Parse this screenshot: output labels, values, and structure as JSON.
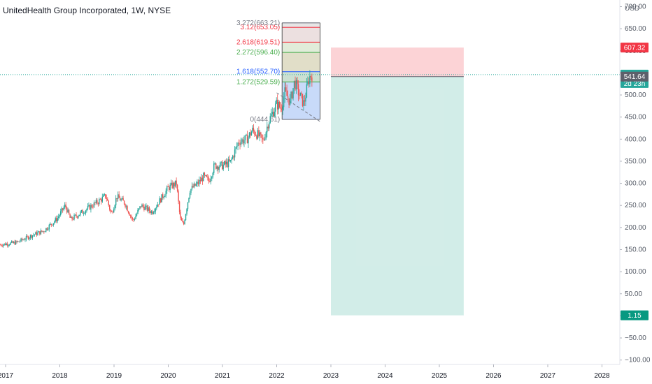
{
  "header": {
    "title": "UnitedHealth Group Incorporated, 1W, NYSE",
    "currency": "USD"
  },
  "chart_data": {
    "type": "candlestick",
    "symbol_title": "UnitedHealth Group Incorporated, 1W, NYSE",
    "currency": "USD",
    "ylim": [
      -110,
      715
    ],
    "y_ticks": [
      "700.00",
      "650.00",
      "600.00",
      "550.00",
      "500.00",
      "450.00",
      "400.00",
      "350.00",
      "300.00",
      "250.00",
      "200.00",
      "150.00",
      "100.00",
      "50.00",
      "0.00",
      "−50.00",
      "−100.00"
    ],
    "y_tick_values": [
      700,
      650,
      600,
      550,
      500,
      450,
      400,
      350,
      300,
      250,
      200,
      150,
      100,
      50,
      0,
      -50,
      -100
    ],
    "x_ticks": [
      "2017",
      "2018",
      "2019",
      "2020",
      "2021",
      "2022",
      "2023",
      "2024",
      "2025",
      "2026",
      "2027",
      "2028"
    ],
    "x_tick_years": [
      2017,
      2018,
      2019,
      2020,
      2021,
      2022,
      2023,
      2024,
      2025,
      2026,
      2027,
      2028
    ],
    "x_range_years": [
      2016.9,
      2028.45
    ],
    "price_path": [
      [
        2016.9,
        161
      ],
      [
        2017.2,
        166
      ],
      [
        2017.5,
        183
      ],
      [
        2017.7,
        192
      ],
      [
        2017.95,
        220
      ],
      [
        2018.1,
        250
      ],
      [
        2018.2,
        218
      ],
      [
        2018.45,
        238
      ],
      [
        2018.7,
        258
      ],
      [
        2018.85,
        272
      ],
      [
        2018.95,
        230
      ],
      [
        2019.05,
        270
      ],
      [
        2019.2,
        255
      ],
      [
        2019.35,
        215
      ],
      [
        2019.5,
        250
      ],
      [
        2019.7,
        235
      ],
      [
        2019.85,
        262
      ],
      [
        2020.0,
        290
      ],
      [
        2020.15,
        300
      ],
      [
        2020.22,
        220
      ],
      [
        2020.28,
        205
      ],
      [
        2020.4,
        285
      ],
      [
        2020.55,
        300
      ],
      [
        2020.65,
        315
      ],
      [
        2020.75,
        305
      ],
      [
        2020.85,
        340
      ],
      [
        2021.0,
        340
      ],
      [
        2021.15,
        348
      ],
      [
        2021.3,
        395
      ],
      [
        2021.45,
        400
      ],
      [
        2021.55,
        420
      ],
      [
        2021.65,
        410
      ],
      [
        2021.75,
        395
      ],
      [
        2021.85,
        440
      ],
      [
        2022.0,
        480
      ],
      [
        2022.08,
        470
      ],
      [
        2022.15,
        505
      ],
      [
        2022.25,
        485
      ],
      [
        2022.33,
        530
      ],
      [
        2022.42,
        500
      ],
      [
        2022.5,
        480
      ],
      [
        2022.6,
        540
      ],
      [
        2022.65,
        546.12
      ]
    ],
    "fib_extension": {
      "levels": [
        {
          "ratio": "0",
          "price": 444.61,
          "label": "0(444.61)",
          "color": "#787b86"
        },
        {
          "ratio": "1.272",
          "price": 529.59,
          "label": "1.272(529.59)",
          "color": "#4caf50"
        },
        {
          "ratio": "1.618",
          "price": 552.7,
          "label": "1.618(552.70)",
          "color": "#2962ff"
        },
        {
          "ratio": "2.272",
          "price": 596.4,
          "label": "2.272(596.40)",
          "color": "#4caf50"
        },
        {
          "ratio": "2.618",
          "price": 619.51,
          "label": "2.618(619.51)",
          "color": "#f23645"
        },
        {
          "ratio": "3.12",
          "price": 653.05,
          "label": "3.12(653.05)",
          "color": "#f23645"
        },
        {
          "ratio": "3.272",
          "price": 663.21,
          "label": "3.272(663.21)",
          "color": "#787b86"
        }
      ],
      "x_start": 2022.1,
      "x_end": 2022.8
    },
    "short_position": {
      "entry": 541.64,
      "stop": 607.32,
      "target": 1.15,
      "x_start": 2023.0,
      "x_end": 2025.45,
      "stop_color": "#f23645",
      "target_color": "#089981"
    },
    "last_price": 546.12,
    "price_tags": [
      {
        "label": "607.32",
        "price": 607.32,
        "color": "#f23645"
      },
      {
        "label": "546.12",
        "price": 546.12,
        "color": "#26a69a",
        "sub": "2d 23h"
      },
      {
        "label": "541.64",
        "price": 541.64,
        "color": "#5d606b"
      },
      {
        "label": "1.15",
        "price": 1.15,
        "color": "#089981"
      }
    ]
  }
}
